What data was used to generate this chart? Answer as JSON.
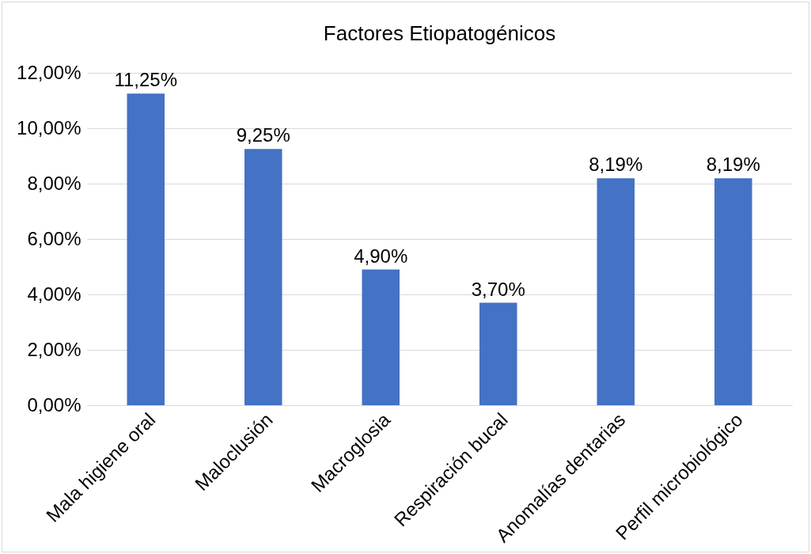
{
  "chart_data": {
    "type": "bar",
    "title": "Factores Etiopatogénicos",
    "categories": [
      "Mala higiene oral",
      "Maloclusión",
      "Macroglosia",
      "Respiración bucal",
      "Anomalías dentarias",
      "Perfil microbiológico"
    ],
    "values": [
      11.25,
      9.25,
      4.9,
      3.7,
      8.19,
      8.19
    ],
    "value_labels": [
      "11,25%",
      "9,25%",
      "4,90%",
      "3,70%",
      "8,19%",
      "8,19%"
    ],
    "color": "#4472c4",
    "ylim": [
      0,
      12
    ],
    "yticks": [
      {
        "value": 0,
        "label": "0,00%"
      },
      {
        "value": 2,
        "label": "2,00%"
      },
      {
        "value": 4,
        "label": "4,00%"
      },
      {
        "value": 6,
        "label": "6,00%"
      },
      {
        "value": 8,
        "label": "8,00%"
      },
      {
        "value": 10,
        "label": "10,00%"
      },
      {
        "value": 12,
        "label": "12,00%"
      }
    ],
    "grid": "y"
  }
}
